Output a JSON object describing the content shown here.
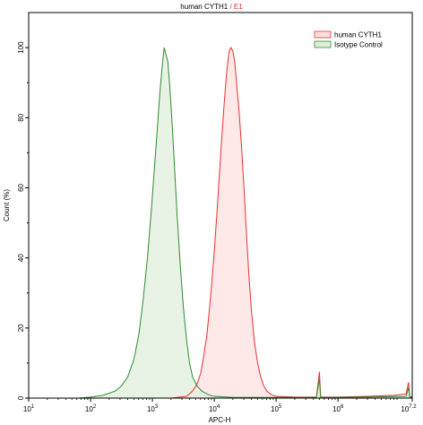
{
  "chart_data": {
    "type": "area",
    "title": "human CYTH1",
    "title_suffix": "E1",
    "xlabel": "APC-H",
    "ylabel": "Count (%)",
    "x_scale": "log",
    "x_ticks": [
      {
        "base": "10",
        "exp": "1"
      },
      {
        "base": "10",
        "exp": "2"
      },
      {
        "base": "10",
        "exp": "3"
      },
      {
        "base": "10",
        "exp": "4"
      },
      {
        "base": "10",
        "exp": "5"
      },
      {
        "base": "10",
        "exp": "6"
      },
      {
        "base": "10",
        "exp": "7.2"
      }
    ],
    "xlim": [
      1,
      7.2
    ],
    "ylim": [
      0,
      110
    ],
    "y_ticks": [
      0,
      20,
      40,
      60,
      80,
      100
    ],
    "legend_position": "top-right",
    "grid": false,
    "series": [
      {
        "name": "human CYTH1",
        "color": "#e8302f",
        "fill": "#fde0e0",
        "points": [
          [
            1.0,
            0
          ],
          [
            3.3,
            0
          ],
          [
            3.55,
            0.5
          ],
          [
            3.65,
            2
          ],
          [
            3.72,
            4
          ],
          [
            3.78,
            7
          ],
          [
            3.83,
            12
          ],
          [
            3.88,
            18
          ],
          [
            3.92,
            25
          ],
          [
            3.96,
            33
          ],
          [
            4.0,
            42
          ],
          [
            4.04,
            52
          ],
          [
            4.08,
            63
          ],
          [
            4.12,
            74
          ],
          [
            4.16,
            84
          ],
          [
            4.2,
            93
          ],
          [
            4.24,
            99
          ],
          [
            4.27,
            100
          ],
          [
            4.3,
            99
          ],
          [
            4.33,
            96
          ],
          [
            4.36,
            90
          ],
          [
            4.4,
            82
          ],
          [
            4.44,
            72
          ],
          [
            4.48,
            60
          ],
          [
            4.52,
            47
          ],
          [
            4.56,
            35
          ],
          [
            4.6,
            25
          ],
          [
            4.65,
            16
          ],
          [
            4.7,
            10
          ],
          [
            4.75,
            6
          ],
          [
            4.8,
            3.5
          ],
          [
            4.85,
            2
          ],
          [
            4.92,
            1
          ],
          [
            5.0,
            0.5
          ],
          [
            5.3,
            0.3
          ],
          [
            5.65,
            0.3
          ],
          [
            5.7,
            7.5
          ],
          [
            5.72,
            0.3
          ],
          [
            6.0,
            0.3
          ],
          [
            6.5,
            0.5
          ],
          [
            6.9,
            0.8
          ],
          [
            7.1,
            1.2
          ],
          [
            7.14,
            4.5
          ],
          [
            7.16,
            0.5
          ],
          [
            7.2,
            0.3
          ]
        ]
      },
      {
        "name": "Isotype Control",
        "color": "#2e8b2e",
        "fill": "#e0efdc",
        "points": [
          [
            1.0,
            0
          ],
          [
            1.8,
            0
          ],
          [
            2.0,
            0.3
          ],
          [
            2.2,
            0.8
          ],
          [
            2.4,
            2
          ],
          [
            2.5,
            3.5
          ],
          [
            2.6,
            6
          ],
          [
            2.7,
            11
          ],
          [
            2.78,
            18
          ],
          [
            2.85,
            28
          ],
          [
            2.92,
            40
          ],
          [
            2.98,
            53
          ],
          [
            3.03,
            65
          ],
          [
            3.08,
            77
          ],
          [
            3.12,
            87
          ],
          [
            3.16,
            95
          ],
          [
            3.19,
            100
          ],
          [
            3.22,
            98
          ],
          [
            3.25,
            96
          ],
          [
            3.28,
            89
          ],
          [
            3.32,
            78
          ],
          [
            3.36,
            65
          ],
          [
            3.4,
            52
          ],
          [
            3.45,
            38
          ],
          [
            3.5,
            26
          ],
          [
            3.55,
            17
          ],
          [
            3.6,
            10
          ],
          [
            3.65,
            6
          ],
          [
            3.72,
            3.5
          ],
          [
            3.8,
            2
          ],
          [
            3.9,
            1
          ],
          [
            4.0,
            0.5
          ],
          [
            4.3,
            0.2
          ],
          [
            5.65,
            0.2
          ],
          [
            5.7,
            5.5
          ],
          [
            5.72,
            0.2
          ],
          [
            6.5,
            0.3
          ],
          [
            7.1,
            0.5
          ],
          [
            7.14,
            3
          ],
          [
            7.16,
            0.3
          ],
          [
            7.2,
            0.2
          ]
        ]
      }
    ]
  },
  "colors": {
    "title_main": "#000000",
    "title_suffix": "#e8302f"
  }
}
